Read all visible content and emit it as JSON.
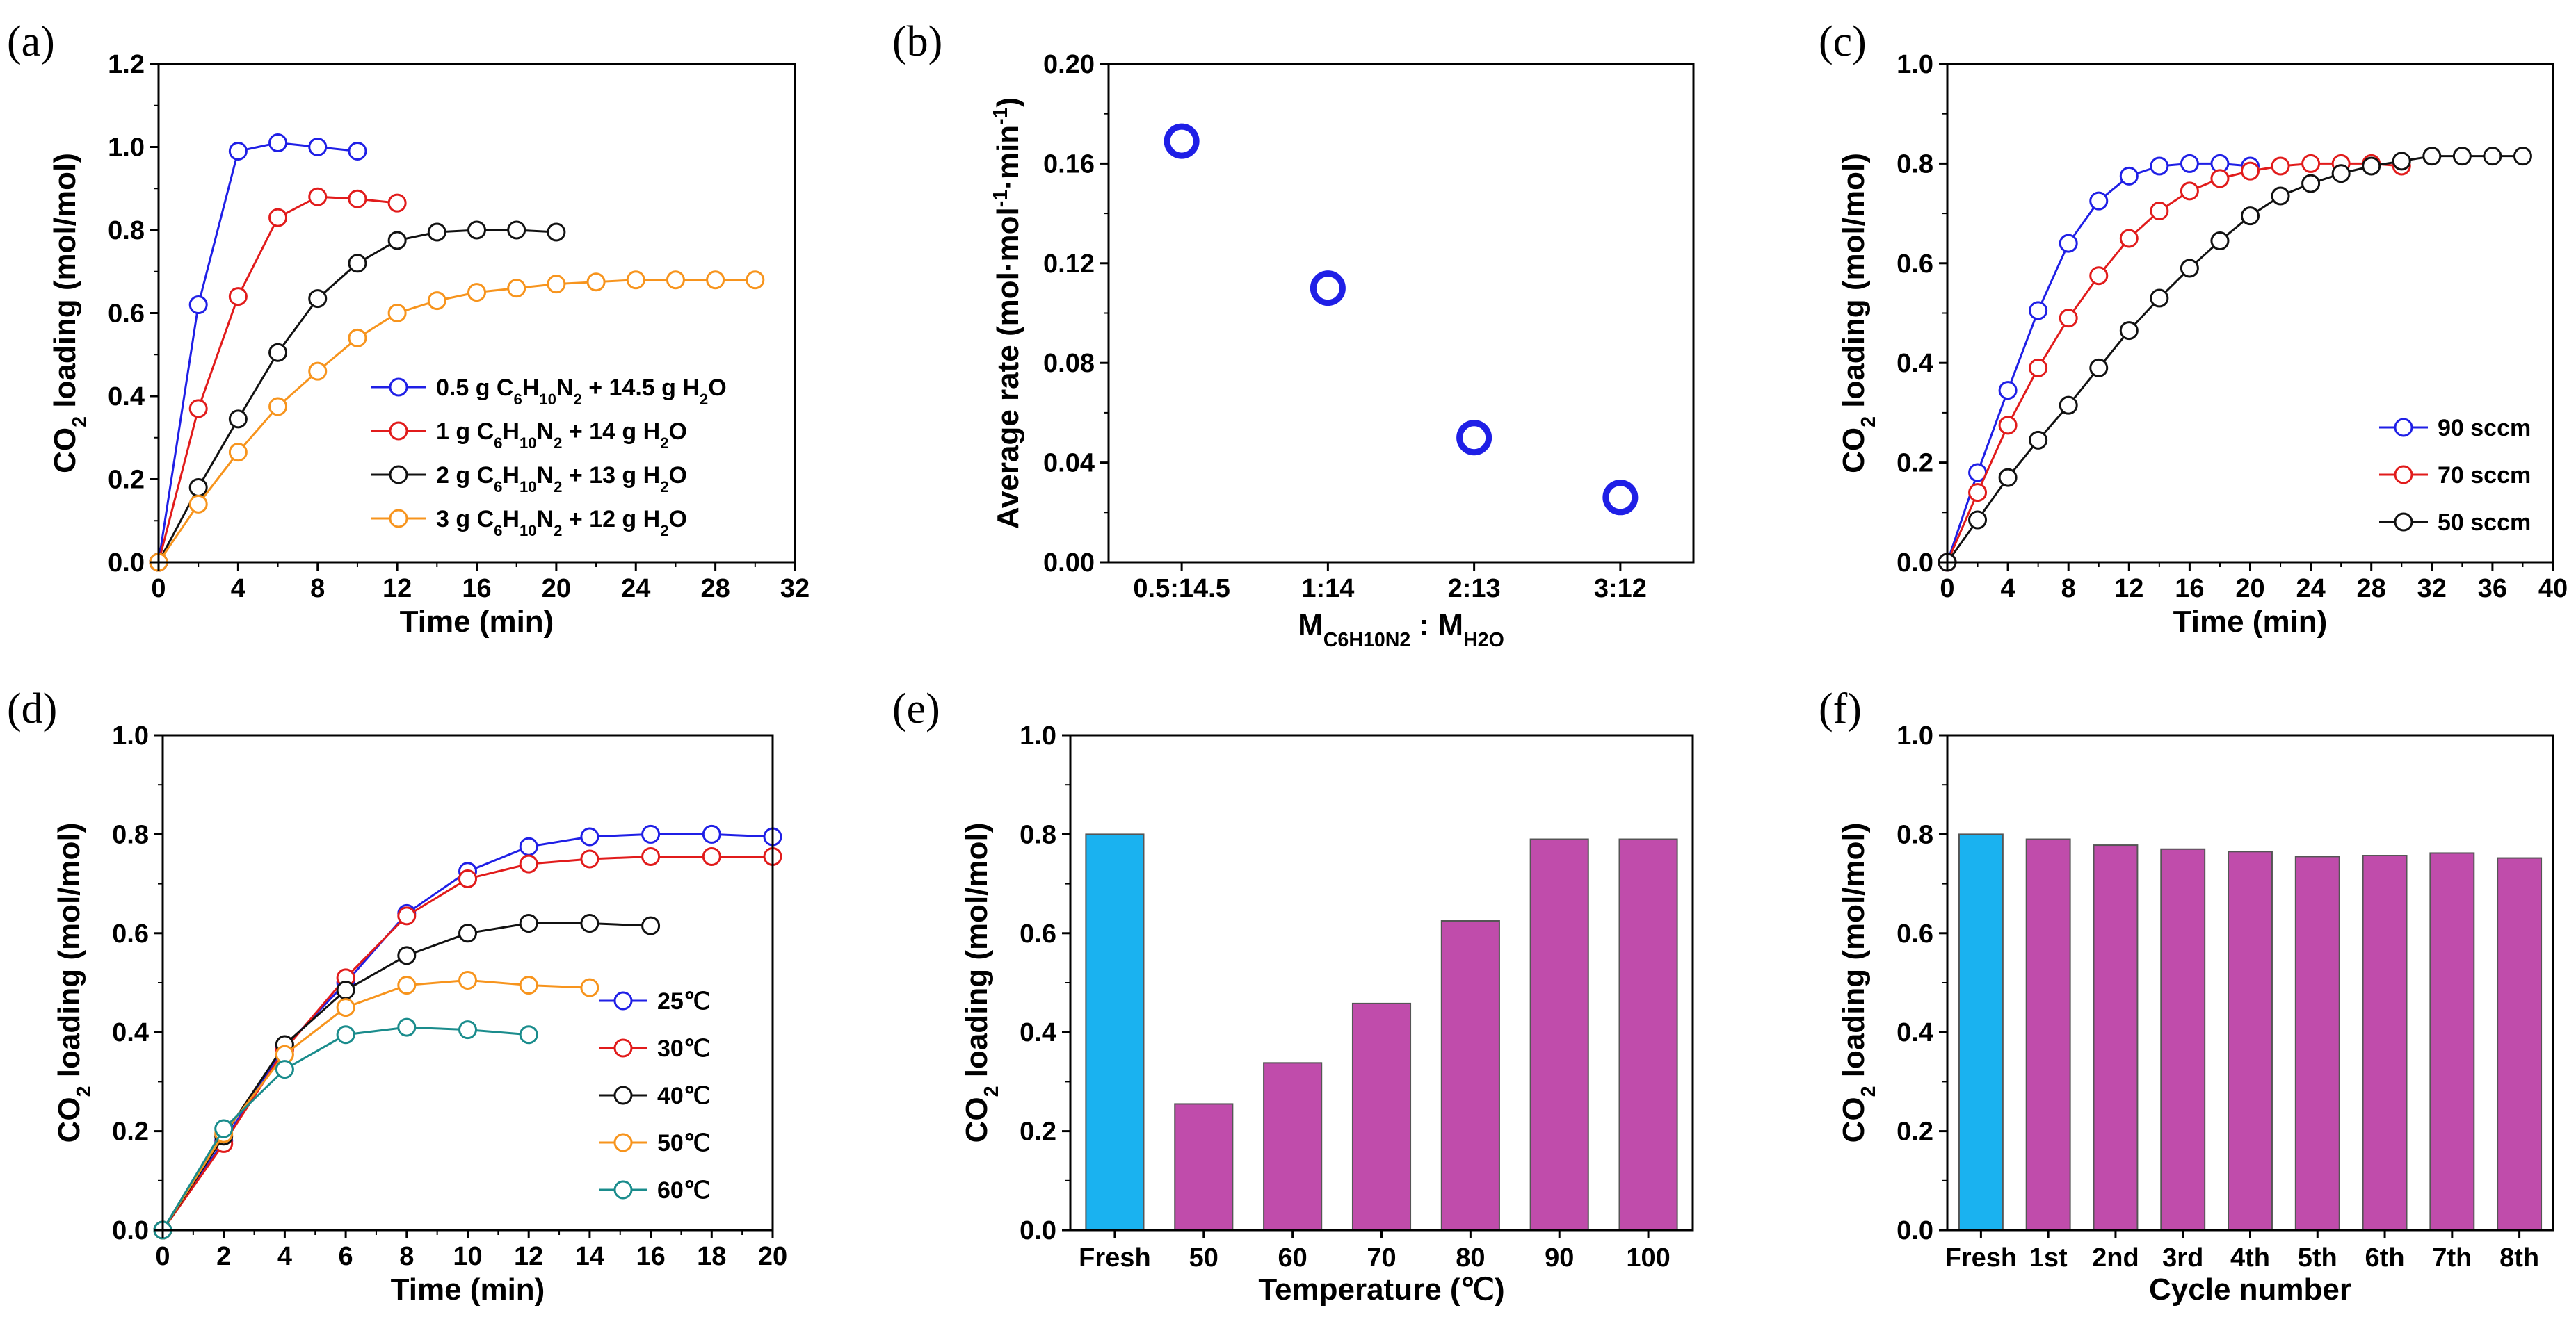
{
  "chart_data": [
    {
      "id": "a",
      "panel_label": "(a)",
      "type": "line",
      "xlabel": "Time (min)",
      "ylabel": "CO2 loading (mol/mol)",
      "xlim": [
        0,
        32
      ],
      "ylim": [
        0,
        1.2
      ],
      "xticks": [
        "0",
        "4",
        "8",
        "12",
        "16",
        "20",
        "24",
        "28",
        "32"
      ],
      "yticks": [
        "0.0",
        "0.2",
        "0.4",
        "0.6",
        "0.8",
        "1.0",
        "1.2"
      ],
      "legend": "mid-right",
      "series": [
        {
          "name": "0.5 g C6H10N2 + 14.5 g H2O",
          "color": "#1f1fe6",
          "x": [
            0,
            2,
            4,
            6,
            8,
            10
          ],
          "y": [
            0,
            0.62,
            0.99,
            1.01,
            1.0,
            0.99
          ]
        },
        {
          "name": "1 g C6H10N2 + 14 g H2O",
          "color": "#e11b1b",
          "x": [
            0,
            2,
            4,
            6,
            8,
            10,
            12
          ],
          "y": [
            0,
            0.37,
            0.64,
            0.83,
            0.88,
            0.875,
            0.865
          ]
        },
        {
          "name": "2 g C6H10N2 + 13 g H2O",
          "color": "#111111",
          "x": [
            0,
            2,
            4,
            6,
            8,
            10,
            12,
            14,
            16,
            18,
            20
          ],
          "y": [
            0,
            0.18,
            0.345,
            0.505,
            0.635,
            0.72,
            0.775,
            0.795,
            0.8,
            0.8,
            0.795
          ]
        },
        {
          "name": "3 g C6H10N2 + 12 g H2O",
          "color": "#f7941d",
          "x": [
            0,
            2,
            4,
            6,
            8,
            10,
            12,
            14,
            16,
            18,
            20,
            22,
            24,
            26,
            28,
            30
          ],
          "y": [
            0,
            0.14,
            0.265,
            0.375,
            0.46,
            0.54,
            0.6,
            0.63,
            0.65,
            0.66,
            0.67,
            0.675,
            0.68,
            0.68,
            0.68,
            0.68
          ]
        }
      ]
    },
    {
      "id": "b",
      "panel_label": "(b)",
      "type": "scatter",
      "xlabel": "M_C6H10N2 : M_H2O",
      "ylabel": "Average rate (mol·mol-1·min-1)",
      "categories": [
        "0.5:14.5",
        "1:14",
        "2:13",
        "3:12"
      ],
      "values": [
        0.169,
        0.11,
        0.05,
        0.026
      ],
      "ylim": [
        0,
        0.2
      ],
      "yticks": [
        "0.00",
        "0.04",
        "0.08",
        "0.12",
        "0.16",
        "0.20"
      ],
      "color": "#1f1fe6"
    },
    {
      "id": "c",
      "panel_label": "(c)",
      "type": "line",
      "xlabel": "Time (min)",
      "ylabel": "CO2 loading (mol/mol)",
      "xlim": [
        0,
        40
      ],
      "ylim": [
        0,
        1.0
      ],
      "xticks": [
        "0",
        "4",
        "8",
        "12",
        "16",
        "20",
        "24",
        "28",
        "32",
        "36",
        "40"
      ],
      "yticks": [
        "0.0",
        "0.2",
        "0.4",
        "0.6",
        "0.8",
        "1.0"
      ],
      "legend": "bottom-right",
      "series": [
        {
          "name": "90 sccm",
          "color": "#1f1fe6",
          "x": [
            0,
            2,
            4,
            6,
            8,
            10,
            12,
            14,
            16,
            18,
            20
          ],
          "y": [
            0,
            0.18,
            0.345,
            0.505,
            0.64,
            0.725,
            0.775,
            0.795,
            0.8,
            0.8,
            0.795
          ]
        },
        {
          "name": "70 sccm",
          "color": "#e11b1b",
          "x": [
            0,
            2,
            4,
            6,
            8,
            10,
            12,
            14,
            16,
            18,
            20,
            22,
            24,
            26,
            28,
            30
          ],
          "y": [
            0,
            0.14,
            0.275,
            0.39,
            0.49,
            0.575,
            0.65,
            0.705,
            0.745,
            0.77,
            0.785,
            0.795,
            0.8,
            0.8,
            0.8,
            0.795
          ]
        },
        {
          "name": "50 sccm",
          "color": "#111111",
          "x": [
            0,
            2,
            4,
            6,
            8,
            10,
            12,
            14,
            16,
            18,
            20,
            22,
            24,
            26,
            28,
            30,
            32,
            34,
            36,
            38
          ],
          "y": [
            0,
            0.085,
            0.17,
            0.245,
            0.315,
            0.39,
            0.465,
            0.53,
            0.59,
            0.645,
            0.695,
            0.735,
            0.76,
            0.78,
            0.795,
            0.805,
            0.815,
            0.815,
            0.815,
            0.815
          ]
        }
      ]
    },
    {
      "id": "d",
      "panel_label": "(d)",
      "type": "line",
      "xlabel": "Time (min)",
      "ylabel": "CO2 loading (mol/mol)",
      "xlim": [
        0,
        20
      ],
      "ylim": [
        0,
        1.0
      ],
      "xticks": [
        "0",
        "2",
        "4",
        "6",
        "8",
        "10",
        "12",
        "14",
        "16",
        "18",
        "20"
      ],
      "yticks": [
        "0.0",
        "0.2",
        "0.4",
        "0.6",
        "0.8",
        "1.0"
      ],
      "legend": "bottom-right",
      "series": [
        {
          "name": "25℃",
          "color": "#1f1fe6",
          "x": [
            0,
            2,
            4,
            6,
            8,
            10,
            12,
            14,
            16,
            18,
            20
          ],
          "y": [
            0,
            0.18,
            0.37,
            0.5,
            0.64,
            0.725,
            0.775,
            0.795,
            0.8,
            0.8,
            0.795
          ]
        },
        {
          "name": "30℃",
          "color": "#e11b1b",
          "x": [
            0,
            2,
            4,
            6,
            8,
            10,
            12,
            14,
            16,
            18,
            20
          ],
          "y": [
            0,
            0.175,
            0.365,
            0.51,
            0.635,
            0.71,
            0.74,
            0.75,
            0.755,
            0.755,
            0.755
          ]
        },
        {
          "name": "40℃",
          "color": "#111111",
          "x": [
            0,
            2,
            4,
            6,
            8,
            10,
            12,
            14,
            16
          ],
          "y": [
            0,
            0.19,
            0.375,
            0.485,
            0.555,
            0.6,
            0.62,
            0.62,
            0.615
          ]
        },
        {
          "name": "50℃",
          "color": "#f7941d",
          "x": [
            0,
            2,
            4,
            6,
            8,
            10,
            12,
            14
          ],
          "y": [
            0,
            0.195,
            0.355,
            0.45,
            0.495,
            0.505,
            0.495,
            0.49
          ]
        },
        {
          "name": "60℃",
          "color": "#1a8c8c",
          "x": [
            0,
            2,
            4,
            6,
            8,
            10,
            12
          ],
          "y": [
            0,
            0.205,
            0.325,
            0.395,
            0.41,
            0.405,
            0.395
          ]
        }
      ]
    },
    {
      "id": "e",
      "panel_label": "(e)",
      "type": "bar",
      "xlabel": "Temperature (℃)",
      "ylabel": "CO2 loading (mol/mol)",
      "categories": [
        "Fresh",
        "50",
        "60",
        "70",
        "80",
        "90",
        "100"
      ],
      "values": [
        0.8,
        0.255,
        0.338,
        0.458,
        0.625,
        0.79,
        0.79
      ],
      "colors": [
        "#1ab2f0",
        "#c04cab",
        "#c04cab",
        "#c04cab",
        "#c04cab",
        "#c04cab",
        "#c04cab"
      ],
      "ylim": [
        0,
        1.0
      ],
      "yticks": [
        "0.0",
        "0.2",
        "0.4",
        "0.6",
        "0.8",
        "1.0"
      ]
    },
    {
      "id": "f",
      "panel_label": "(f)",
      "type": "bar",
      "xlabel": "Cycle number",
      "ylabel": "CO2 loading (mol/mol)",
      "categories": [
        "Fresh",
        "1st",
        "2nd",
        "3rd",
        "4th",
        "5th",
        "6th",
        "7th",
        "8th"
      ],
      "values": [
        0.8,
        0.79,
        0.778,
        0.77,
        0.765,
        0.755,
        0.757,
        0.762,
        0.752
      ],
      "colors": [
        "#1ab2f0",
        "#c04cab",
        "#c04cab",
        "#c04cab",
        "#c04cab",
        "#c04cab",
        "#c04cab",
        "#c04cab",
        "#c04cab"
      ],
      "ylim": [
        0,
        1.0
      ],
      "yticks": [
        "0.0",
        "0.2",
        "0.4",
        "0.6",
        "0.8",
        "1.0"
      ]
    }
  ]
}
